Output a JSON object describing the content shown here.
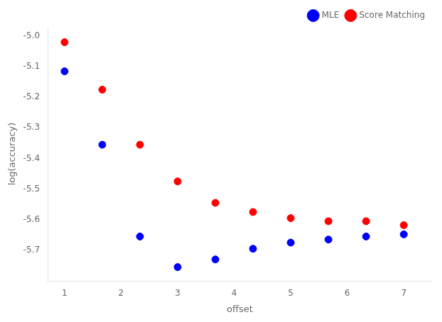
{
  "chart_data": {
    "type": "scatter",
    "x_label": "offset",
    "y_label": "log(accuracy)",
    "x": [
      1.0,
      1.667,
      2.333,
      3.0,
      3.667,
      4.333,
      5.0,
      5.667,
      6.333,
      7.0
    ],
    "series": [
      {
        "name": "MLE",
        "color": "#0000ff",
        "marker": "circle",
        "values": [
          -5.115,
          -5.355,
          -5.655,
          -5.755,
          -5.73,
          -5.695,
          -5.675,
          -5.665,
          -5.655,
          -5.648
        ]
      },
      {
        "name": "Score Matching",
        "color": "#ff0000",
        "marker": "circle",
        "values": [
          -5.02,
          -5.175,
          -5.355,
          -5.475,
          -5.545,
          -5.575,
          -5.595,
          -5.605,
          -5.605,
          -5.618
        ]
      }
    ],
    "xlim": [
      0.7,
      7.5
    ],
    "ylim": [
      -5.8,
      -4.97
    ],
    "xticks": [
      1,
      2,
      3,
      4,
      5,
      6,
      7
    ],
    "yticks": [
      {
        "value": -5.0,
        "label": "-5.0"
      },
      -5.1,
      -5.2,
      -5.3,
      -5.4,
      -5.5,
      -5.6,
      -5.7
    ],
    "grid": false,
    "legend": "upper right"
  }
}
